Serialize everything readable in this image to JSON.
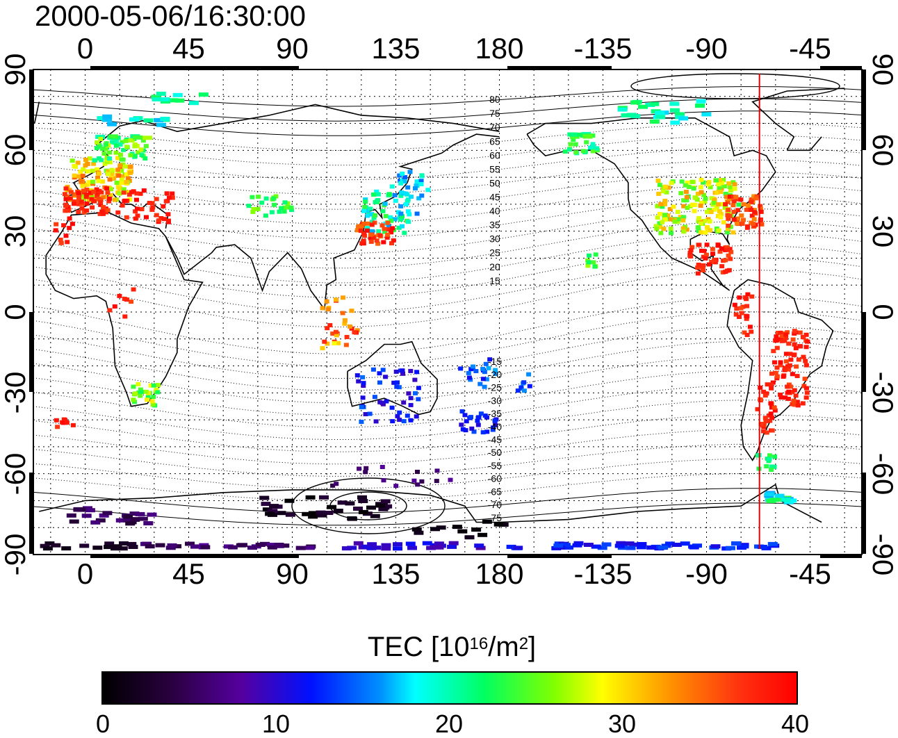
{
  "timestamp": "2000-05-06/16:30:00",
  "axes": {
    "lon_ticks": [
      "0",
      "45",
      "90",
      "135",
      "180",
      "-135",
      "-90",
      "-45"
    ],
    "lat_ticks": [
      "90",
      "60",
      "30",
      "0",
      "-30",
      "-60",
      "-90"
    ]
  },
  "contour_labels": [
    "80",
    "75",
    "70",
    "65",
    "60",
    "55",
    "50",
    "45",
    "40",
    "35",
    "30",
    "25",
    "20",
    "15",
    "-15",
    "-20",
    "-25",
    "-30",
    "-35",
    "-40",
    "-45",
    "-50",
    "-55",
    "-60",
    "-65",
    "-70",
    "-75"
  ],
  "colorbar": {
    "title_main": "TEC  [10",
    "title_exp": "16",
    "title_unit": "/m",
    "title_exp2": "2",
    "title_end": "]",
    "ticks": [
      "0",
      "10",
      "20",
      "30",
      "40"
    ],
    "min": 0,
    "max": 40
  },
  "colors": {
    "marker_line": "#e00000",
    "high_tec": "#ff0000",
    "low_tec": "#1a0020"
  },
  "map": {
    "projection": "equirectangular",
    "lon_min": -22.5,
    "lon_max": 337.5,
    "lat_min": -90,
    "lat_max": 90,
    "grid": true,
    "grid_lon_step": 15,
    "grid_lat_step": 10,
    "marker_longitude": -67
  }
}
